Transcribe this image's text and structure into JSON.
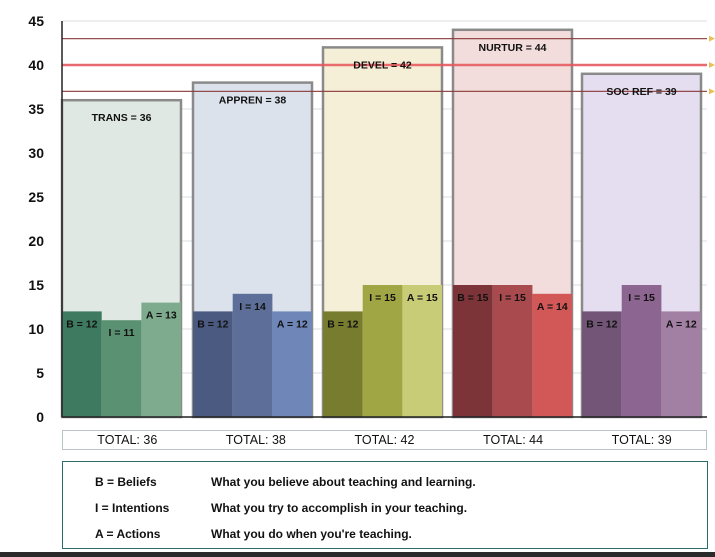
{
  "chart_data": {
    "type": "bar",
    "ylim": [
      0,
      45
    ],
    "yticks": [
      0,
      5,
      10,
      15,
      20,
      25,
      30,
      35,
      40,
      45
    ],
    "reference_lines": [
      37,
      40,
      43
    ],
    "groups": [
      {
        "label": "TRANS = 36",
        "total": 36,
        "total_label": "TOTAL:  36",
        "outer_fill": "#dfe8e2",
        "bars": [
          {
            "label": "B = 12",
            "value": 12,
            "color": "#3e7a5f"
          },
          {
            "label": "I = 11",
            "value": 11,
            "color": "#5b9173"
          },
          {
            "label": "A = 13",
            "value": 13,
            "color": "#7eab8d"
          }
        ]
      },
      {
        "label": "APPREN = 38",
        "total": 38,
        "total_label": "TOTAL:  38",
        "outer_fill": "#dbe2ec",
        "bars": [
          {
            "label": "B = 12",
            "value": 12,
            "color": "#4b5a80"
          },
          {
            "label": "I = 14",
            "value": 14,
            "color": "#5d6e98"
          },
          {
            "label": "A = 12",
            "value": 12,
            "color": "#6f87b8"
          }
        ]
      },
      {
        "label": "DEVEL = 42",
        "total": 42,
        "total_label": "TOTAL:  42",
        "outer_fill": "#f6efd8",
        "bars": [
          {
            "label": "B = 12",
            "value": 12,
            "color": "#787c2e"
          },
          {
            "label": "I = 15",
            "value": 15,
            "color": "#a1a644"
          },
          {
            "label": "A = 15",
            "value": 15,
            "color": "#c8cc76"
          }
        ]
      },
      {
        "label": "NURTUR = 44",
        "total": 44,
        "total_label": "TOTAL:  44",
        "outer_fill": "#f2dcdc",
        "bars": [
          {
            "label": "B = 15",
            "value": 15,
            "color": "#7d3438"
          },
          {
            "label": "I = 15",
            "value": 15,
            "color": "#a84a4e"
          },
          {
            "label": "A = 14",
            "value": 14,
            "color": "#d25858"
          }
        ]
      },
      {
        "label": "SOC REF = 39",
        "total": 39,
        "total_label": "TOTAL:  39",
        "outer_fill": "#e5def0",
        "bars": [
          {
            "label": "B = 12",
            "value": 12,
            "color": "#735577"
          },
          {
            "label": "I = 15",
            "value": 15,
            "color": "#8c6690"
          },
          {
            "label": "A = 12",
            "value": 12,
            "color": "#a280a4"
          }
        ]
      }
    ]
  },
  "legend": [
    {
      "key": "B = Beliefs",
      "desc": "What you believe about teaching and learning."
    },
    {
      "key": "I = Intentions",
      "desc": "What you try to accomplish in your teaching."
    },
    {
      "key": "A = Actions",
      "desc": "What you do when you're teaching."
    }
  ]
}
